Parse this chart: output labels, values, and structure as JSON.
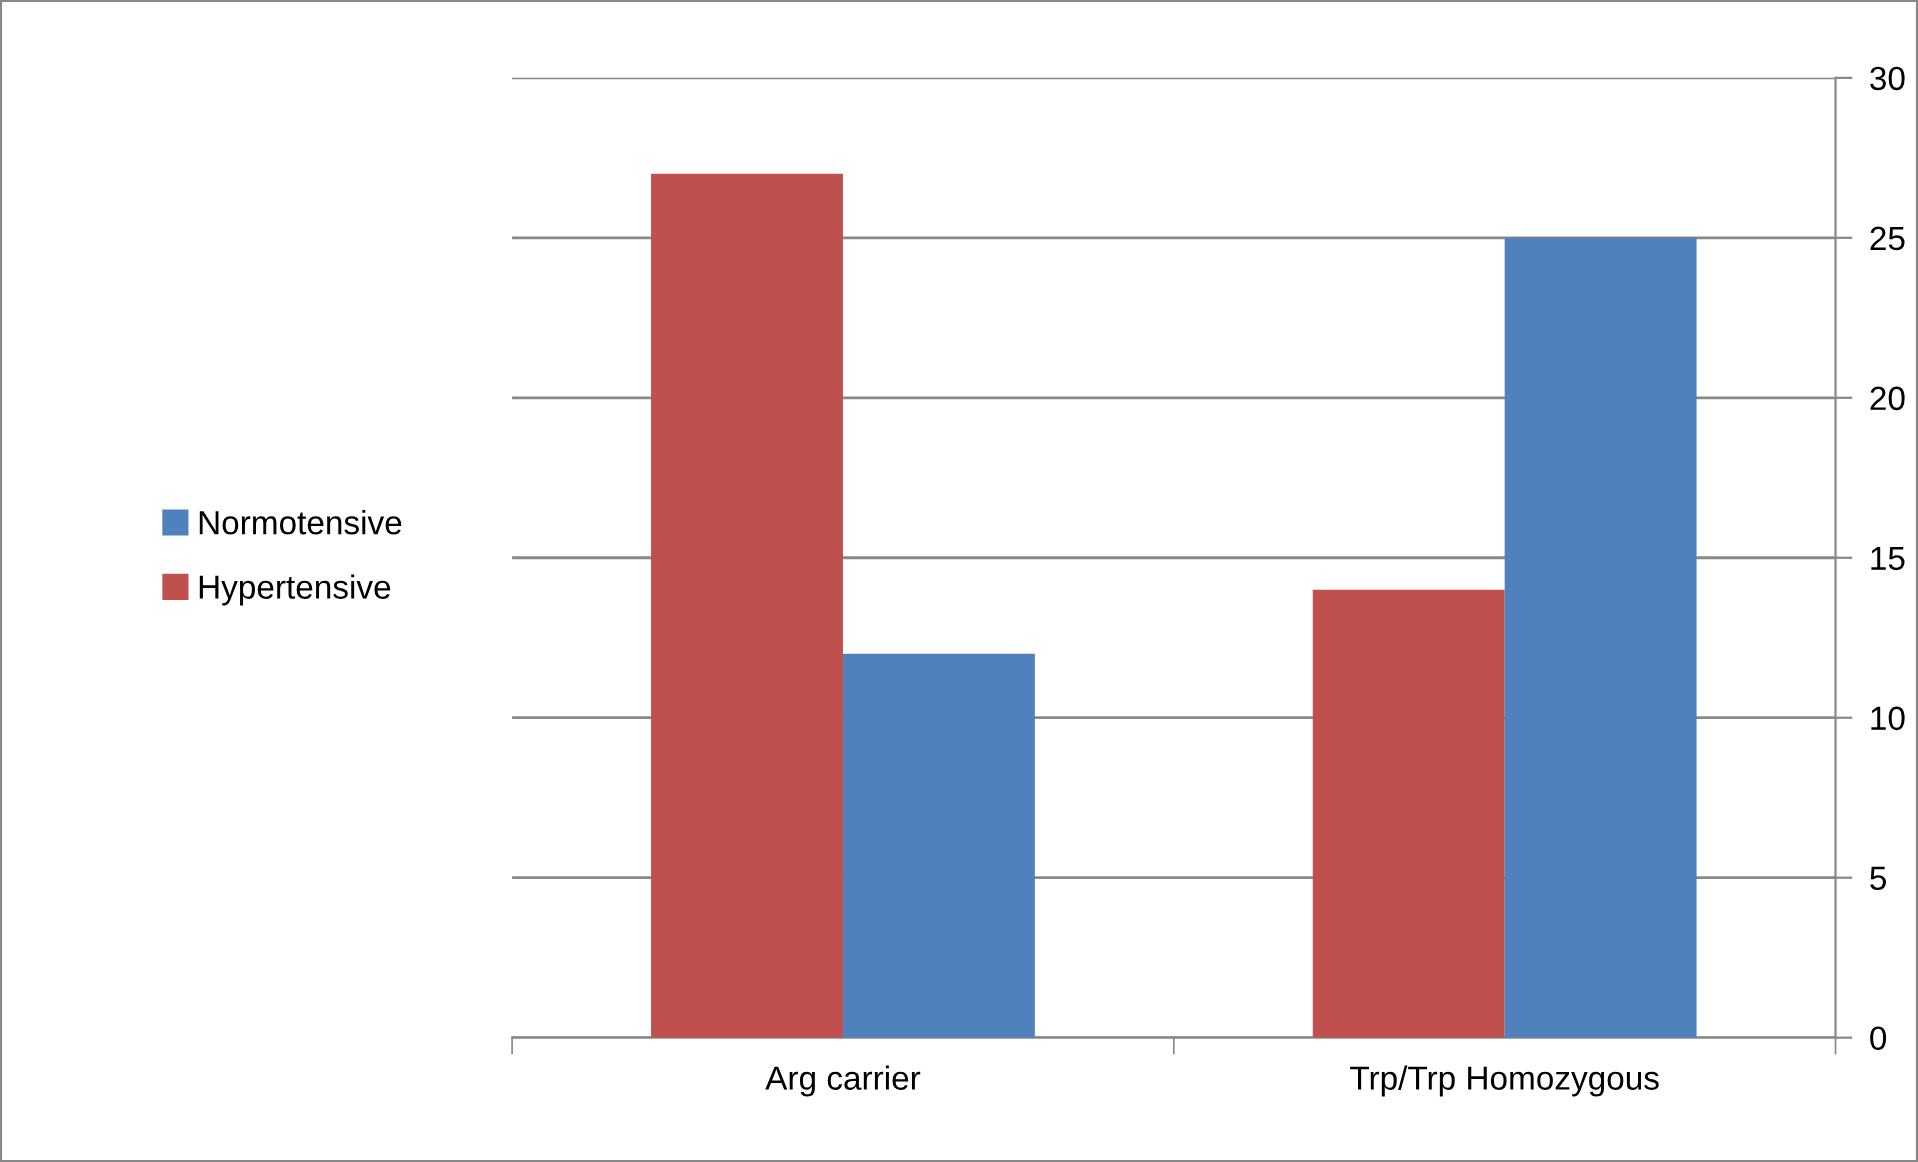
{
  "chart_data": {
    "type": "bar",
    "categories": [
      "Arg carrier",
      "Trp/Trp Homozygous"
    ],
    "series": [
      {
        "name": "Hypertensive",
        "color": "#c0504d",
        "values": [
          27,
          14
        ]
      },
      {
        "name": "Normotensive",
        "color": "#4f81bd",
        "values": [
          12,
          25
        ]
      }
    ],
    "ylim": [
      0,
      30
    ],
    "yticks": [
      0,
      5,
      10,
      15,
      20,
      25,
      30
    ],
    "grid": "y",
    "legend": "left"
  }
}
